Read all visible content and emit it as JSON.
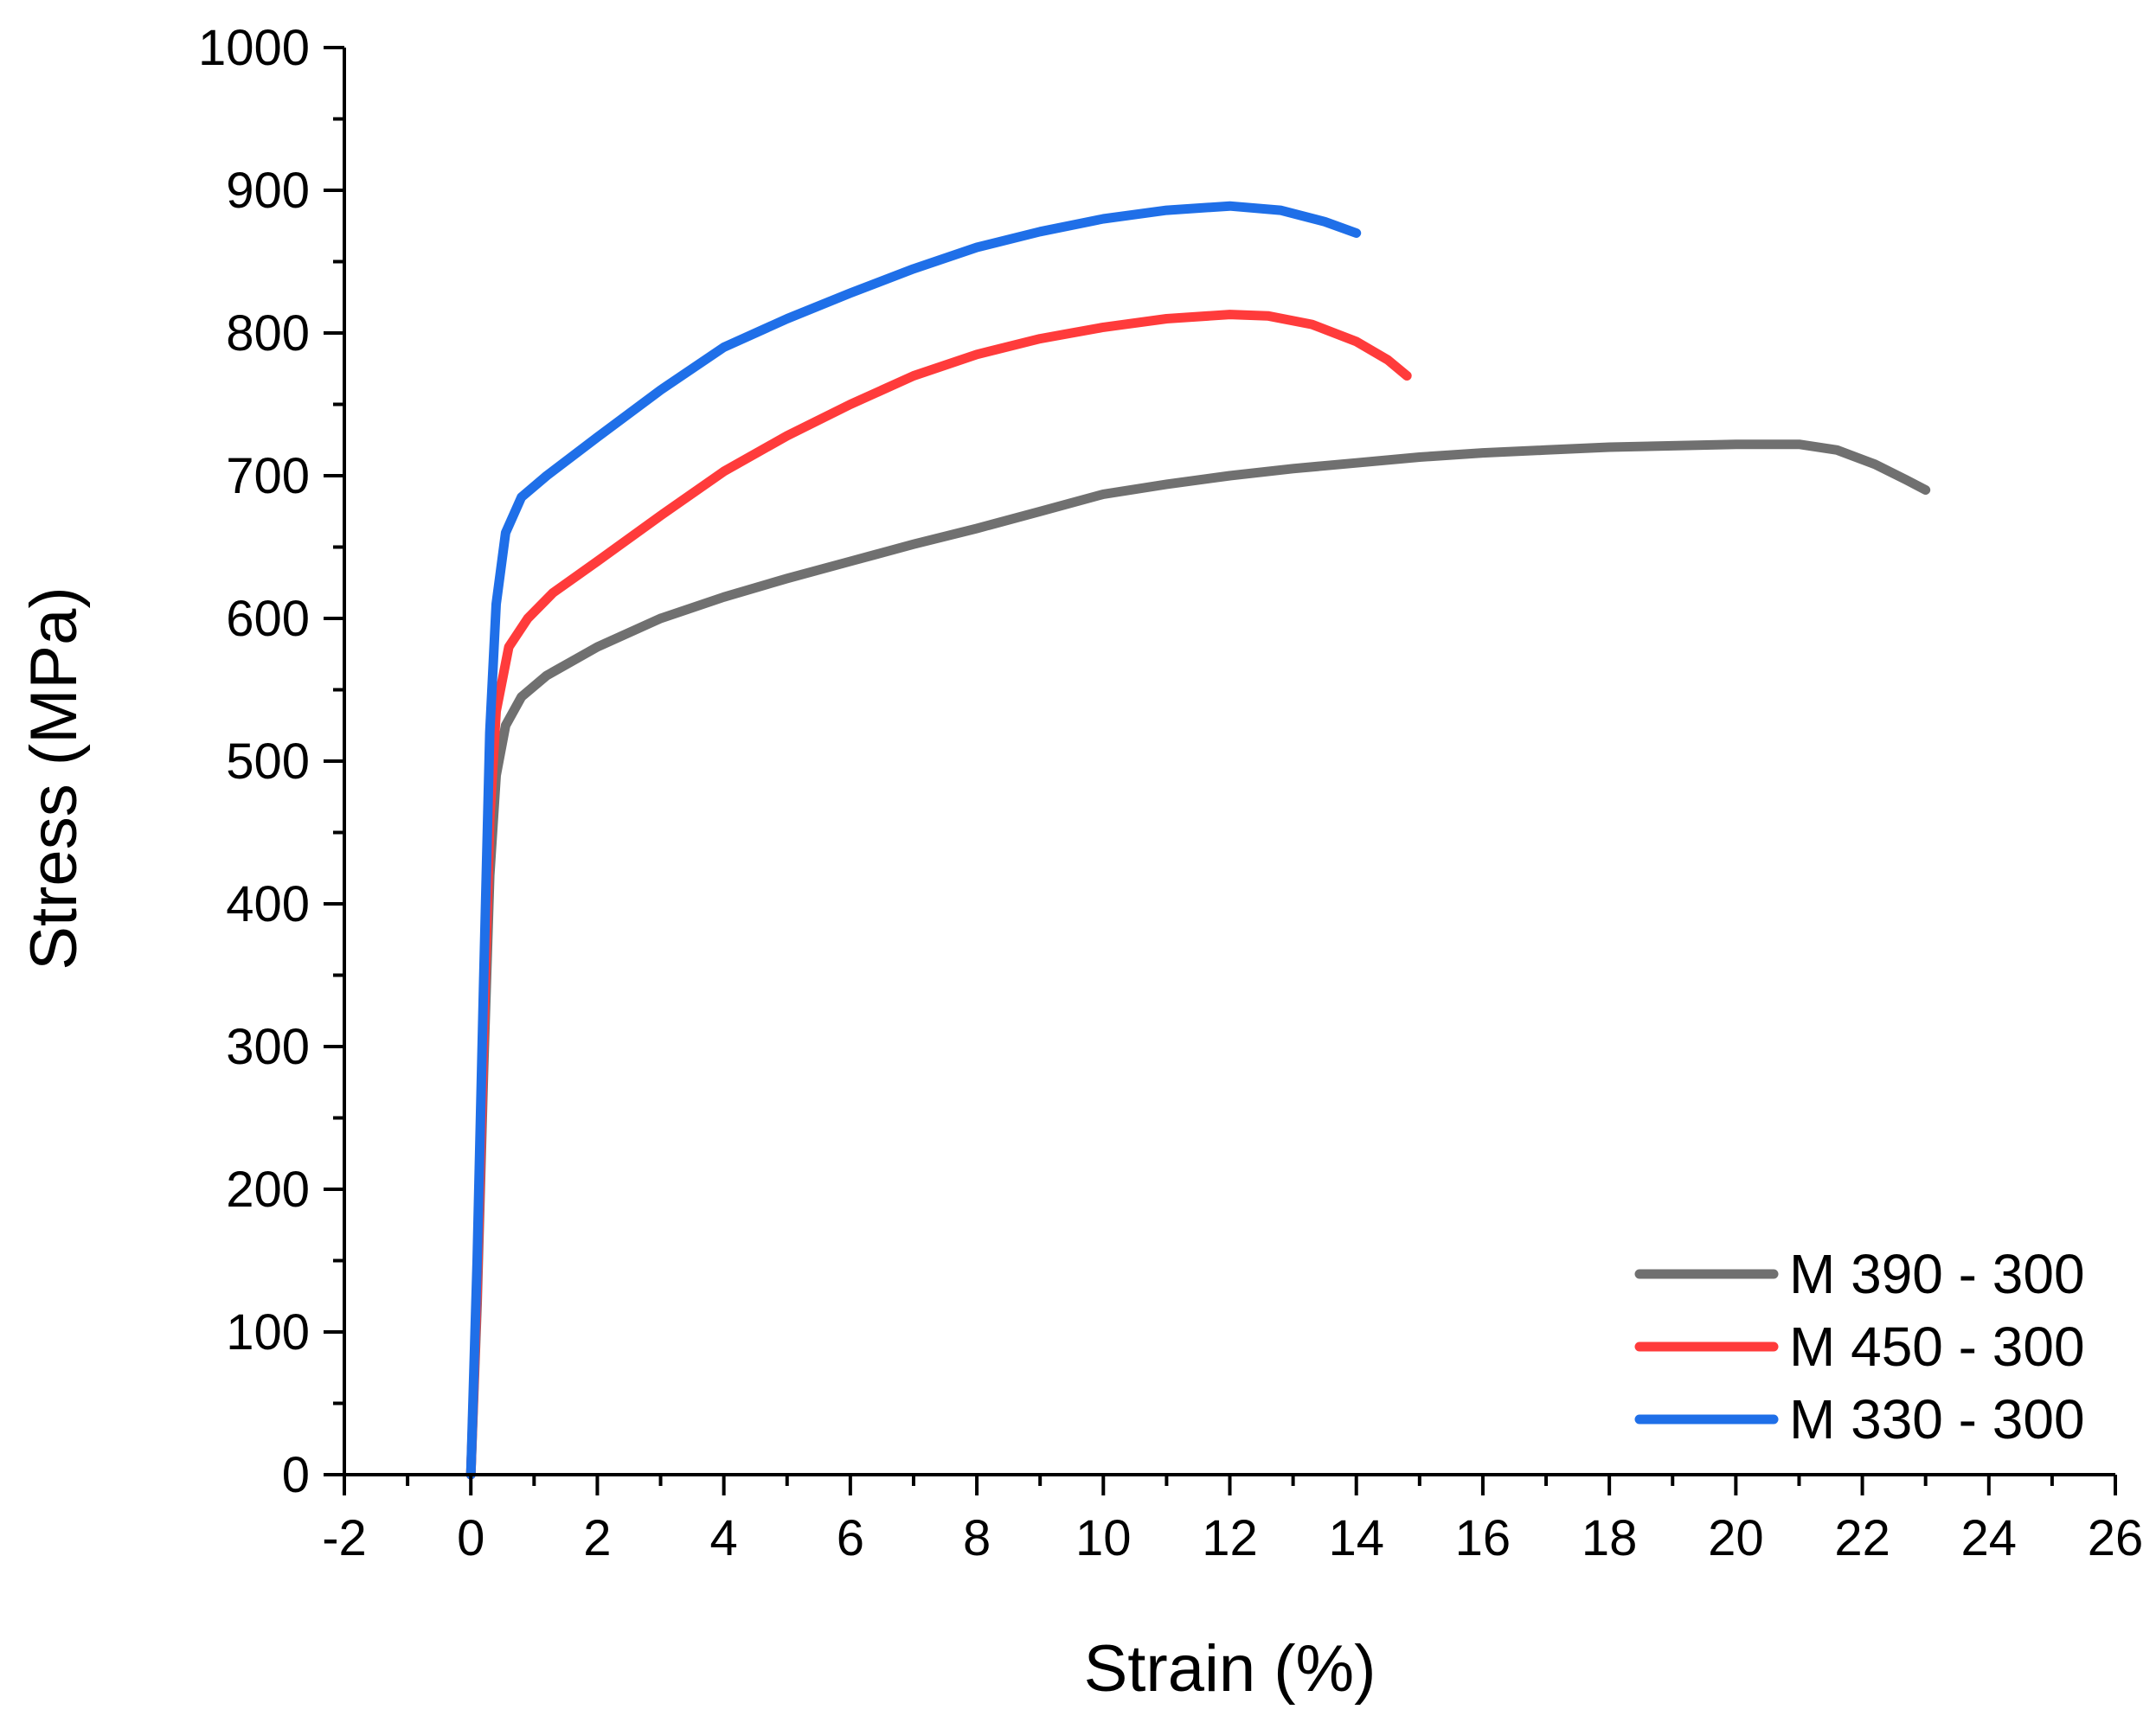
{
  "chart_data": {
    "type": "line",
    "title": "",
    "xlabel": "Strain (%)",
    "ylabel": "Stress (MPa)",
    "xlim": [
      -2,
      26
    ],
    "ylim": [
      0,
      1000
    ],
    "grid": false,
    "legend_position": "bottom-right",
    "x_ticks": [
      "-2",
      "0",
      "2",
      "4",
      "6",
      "8",
      "10",
      "12",
      "14",
      "16",
      "18",
      "20",
      "22",
      "24",
      "26"
    ],
    "y_ticks": [
      "0",
      "100",
      "200",
      "300",
      "400",
      "500",
      "600",
      "700",
      "800",
      "900",
      "1000"
    ],
    "series": [
      {
        "name": "M 390 - 300",
        "color": "#707070",
        "points": [
          [
            0,
            0
          ],
          [
            0.1,
            120
          ],
          [
            0.2,
            280
          ],
          [
            0.3,
            420
          ],
          [
            0.4,
            490
          ],
          [
            0.55,
            525
          ],
          [
            0.8,
            545
          ],
          [
            1.2,
            560
          ],
          [
            2,
            580
          ],
          [
            3,
            600
          ],
          [
            4,
            615
          ],
          [
            5,
            628
          ],
          [
            6,
            640
          ],
          [
            7,
            652
          ],
          [
            8,
            663
          ],
          [
            9,
            675
          ],
          [
            10,
            687
          ],
          [
            11,
            694
          ],
          [
            12,
            700
          ],
          [
            13,
            705
          ],
          [
            14,
            709
          ],
          [
            15,
            713
          ],
          [
            16,
            716
          ],
          [
            17,
            718
          ],
          [
            18,
            720
          ],
          [
            19,
            721
          ],
          [
            20,
            722
          ],
          [
            21,
            722
          ],
          [
            21.6,
            718
          ],
          [
            22.2,
            708
          ],
          [
            22.7,
            697
          ],
          [
            23,
            690
          ]
        ]
      },
      {
        "name": "M 450 - 300",
        "color": "#ff3b3b",
        "points": [
          [
            0,
            0
          ],
          [
            0.1,
            130
          ],
          [
            0.2,
            300
          ],
          [
            0.3,
            460
          ],
          [
            0.4,
            535
          ],
          [
            0.6,
            580
          ],
          [
            0.9,
            600
          ],
          [
            1.3,
            618
          ],
          [
            2,
            640
          ],
          [
            3,
            672
          ],
          [
            4,
            703
          ],
          [
            5,
            728
          ],
          [
            6,
            750
          ],
          [
            7,
            770
          ],
          [
            8,
            785
          ],
          [
            9,
            796
          ],
          [
            10,
            804
          ],
          [
            11,
            810
          ],
          [
            12,
            813
          ],
          [
            12.6,
            812
          ],
          [
            13.3,
            806
          ],
          [
            14,
            794
          ],
          [
            14.5,
            781
          ],
          [
            14.8,
            770
          ]
        ]
      },
      {
        "name": "M 330 - 300",
        "color": "#1f6fe8",
        "points": [
          [
            0,
            0
          ],
          [
            0.1,
            150
          ],
          [
            0.2,
            340
          ],
          [
            0.3,
            520
          ],
          [
            0.4,
            610
          ],
          [
            0.55,
            660
          ],
          [
            0.8,
            685
          ],
          [
            1.2,
            700
          ],
          [
            2,
            727
          ],
          [
            3,
            760
          ],
          [
            4,
            790
          ],
          [
            5,
            810
          ],
          [
            6,
            828
          ],
          [
            7,
            845
          ],
          [
            8,
            860
          ],
          [
            9,
            871
          ],
          [
            10,
            880
          ],
          [
            11,
            886
          ],
          [
            12,
            889
          ],
          [
            12.8,
            886
          ],
          [
            13.5,
            878
          ],
          [
            14,
            870
          ]
        ]
      }
    ]
  }
}
